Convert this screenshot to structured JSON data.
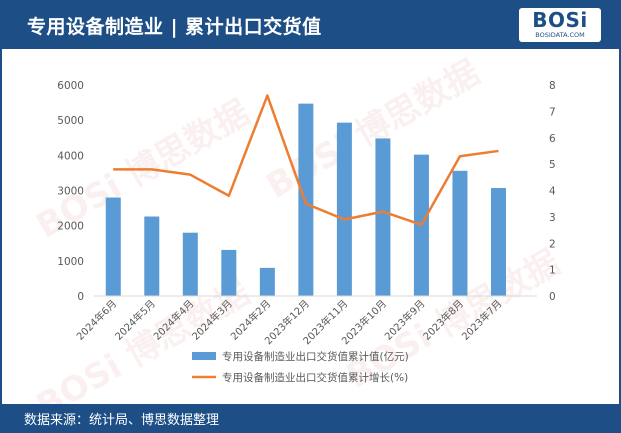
{
  "header": {
    "title": "专用设备制造业 | 累计出口交货值",
    "logo_text": "BOSi",
    "logo_sub": "BOSIDATA.COM"
  },
  "footer": {
    "source": "数据来源：统计局、博思数据整理"
  },
  "watermark": {
    "text": "BOSi 博思数据"
  },
  "colors": {
    "header_bg": "#1d4f86",
    "bar": "#5b9bd5",
    "line": "#ed7d31"
  },
  "chart_data": {
    "type": "bar",
    "categories": [
      "2024年6月",
      "2024年5月",
      "2024年4月",
      "2024年3月",
      "2024年2月",
      "2023年12月",
      "2023年11月",
      "2023年10月",
      "2023年9月",
      "2023年8月",
      "2023年7月"
    ],
    "series": [
      {
        "name": "专用设备制造业出口交货值累计值(亿元)",
        "type": "bar",
        "axis": "left",
        "values": [
          2800,
          2260,
          1800,
          1310,
          800,
          5470,
          4930,
          4480,
          4020,
          3560,
          3070
        ]
      },
      {
        "name": "专用设备制造业出口交货值累计增长(%)",
        "type": "line",
        "axis": "right",
        "values": [
          4.8,
          4.8,
          4.6,
          3.8,
          7.6,
          3.5,
          2.9,
          3.2,
          2.7,
          5.3,
          5.5
        ]
      }
    ],
    "y_left": {
      "ylim": [
        0,
        6000
      ],
      "ticks": [
        "0",
        "1000",
        "2000",
        "3000",
        "4000",
        "5000",
        "6000"
      ]
    },
    "y_right": {
      "ylim": [
        0,
        8
      ],
      "ticks": [
        "0",
        "1",
        "2",
        "3",
        "4",
        "5",
        "6",
        "7",
        "8"
      ]
    },
    "legend": "bottom",
    "grid": false
  }
}
